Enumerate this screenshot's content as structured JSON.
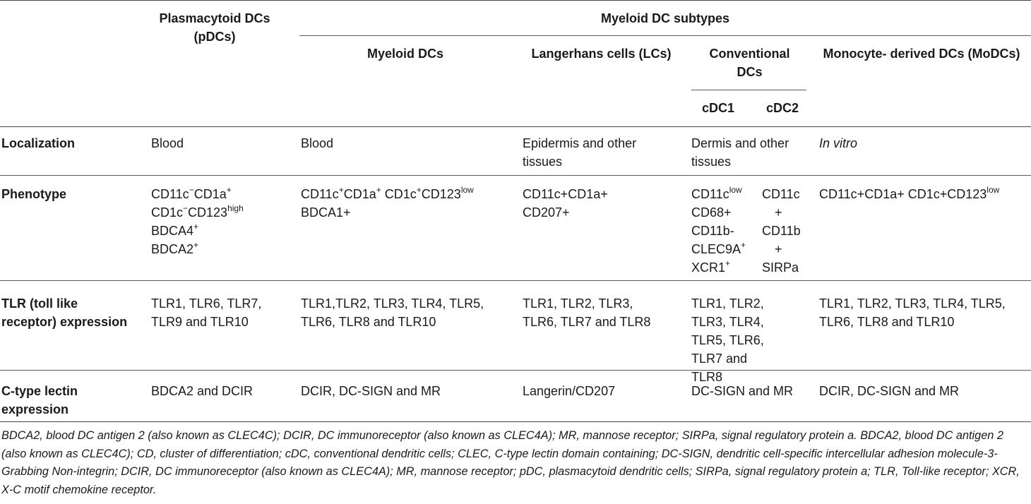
{
  "header": {
    "pdc": "Plasmacytoid DCs (pDCs)",
    "myeloid_group": "Myeloid DC subtypes",
    "myeloid_dcs": "Myeloid DCs",
    "lcs": "Langerhans cells (LCs)",
    "cdcs": "Conventional DCs",
    "cdc1": "cDC1",
    "cdc2": "cDC2",
    "modcs": "Monocyte- derived DCs (MoDCs)"
  },
  "rows": {
    "localization": {
      "label": "Localization",
      "pdc": "Blood",
      "mdc": "Blood",
      "lc": "Epidermis and other tissues",
      "cdc": "Dermis and other tissues",
      "modc": "In vitro"
    },
    "phenotype": {
      "label": "Phenotype",
      "pdc": "CD11c−CD1a+ CD1c−CD123high BDCA4+ BDCA2+",
      "mdc": "CD11c+CD1a+ CD1c+CD123low BDCA1+",
      "lc": "CD11c+CD1a+ CD207+",
      "cdc1": "CD11clow CD68+ CD11b- CLEC9A+ XCR1+",
      "cdc2": "CD11c + CD11b + SIRPa",
      "modc": "CD11c+CD1a+ CD1c+CD123low"
    },
    "tlr": {
      "label": "TLR (toll like receptor) expression",
      "pdc": "TLR1, TLR6, TLR7, TLR9 and TLR10",
      "mdc": "TLR1,TLR2, TLR3, TLR4, TLR5, TLR6, TLR8 and TLR10",
      "lc": "TLR1, TLR2, TLR3, TLR6, TLR7 and TLR8",
      "cdc": "TLR1, TLR2, TLR3, TLR4, TLR5, TLR6, TLR7 and TLR8",
      "modc": "TLR1, TLR2, TLR3, TLR4, TLR5, TLR6, TLR8 and TLR10"
    },
    "lectin": {
      "label": "C-type lectin expression",
      "pdc": "BDCA2 and DCIR",
      "mdc": "DCIR, DC-SIGN and MR",
      "lc": "Langerin/CD207",
      "cdc": "DC-SIGN and MR",
      "modc": "DCIR, DC-SIGN and MR"
    }
  },
  "footnote": "BDCA2, blood DC antigen 2 (also known as CLEC4C); DCIR, DC immunoreceptor (also known as CLEC4A); MR, mannose receptor; SIRPa, signal regulatory protein a. BDCA2, blood DC antigen 2 (also known as CLEC4C); CD, cluster of differentiation; cDC, conventional dendritic cells; CLEC, C-type lectin domain containing; DC-SIGN, dendritic cell-specific intercellular adhesion molecule-3-Grabbing Non-integrin; DCIR, DC immunoreceptor (also known as CLEC4A); MR, mannose receptor; pDC, plasmacytoid dendritic cells; SIRPa, signal regulatory protein a; TLR, Toll-like receptor; XCR, X-C motif chemokine receptor."
}
